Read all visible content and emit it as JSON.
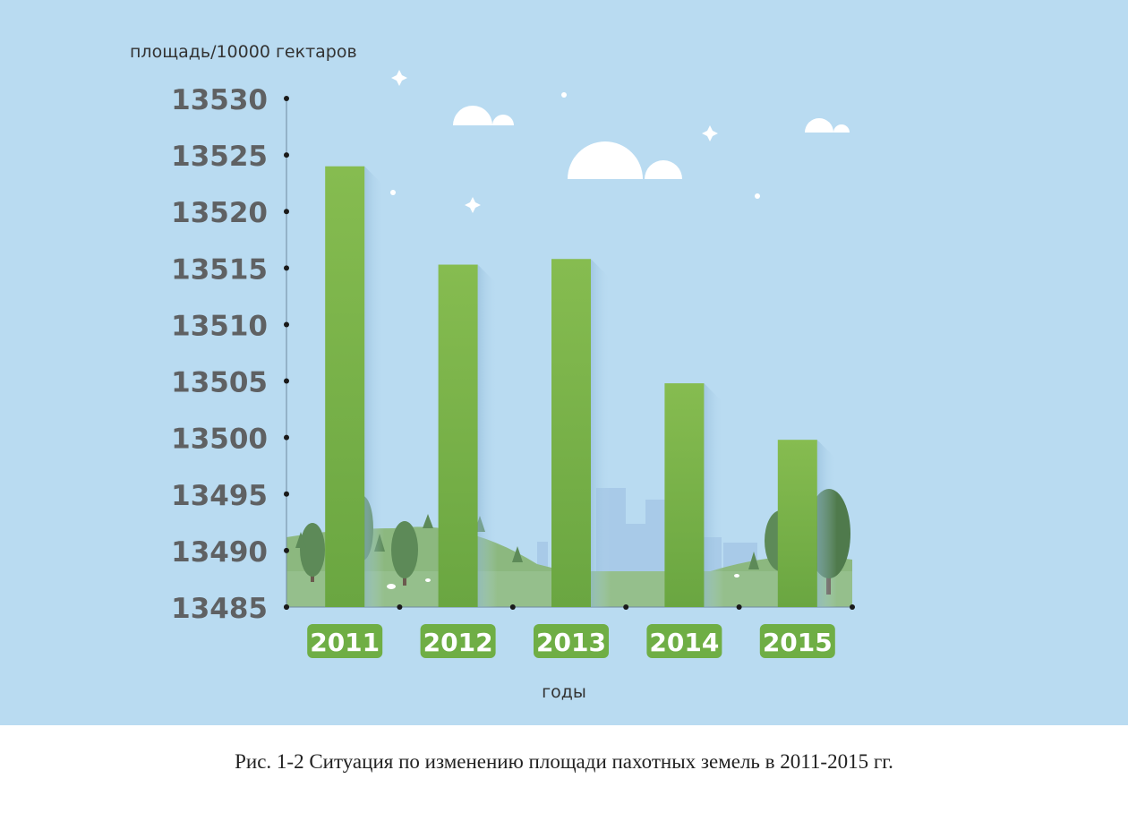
{
  "chart_data": {
    "type": "bar",
    "ylabel": "площадь/10000 гектаров",
    "xlabel": "годы",
    "categories": [
      "2011",
      "2012",
      "2013",
      "2014",
      "2015"
    ],
    "values": [
      13524,
      13515.3,
      13515.8,
      13504.8,
      13499.8
    ],
    "ylim": [
      13485,
      13530
    ],
    "yticks": [
      13530,
      13525,
      13520,
      13515,
      13510,
      13505,
      13500,
      13495,
      13490,
      13485
    ],
    "grid": false,
    "colors": {
      "bar": "#80b84c",
      "bar_dark": "#6aa641",
      "label_bg": "#6fae45",
      "background": "#b9dbf1"
    }
  },
  "caption": "Рис. 1-2 Ситуация по изменению площади пахотных земель в 2011-2015 гг."
}
